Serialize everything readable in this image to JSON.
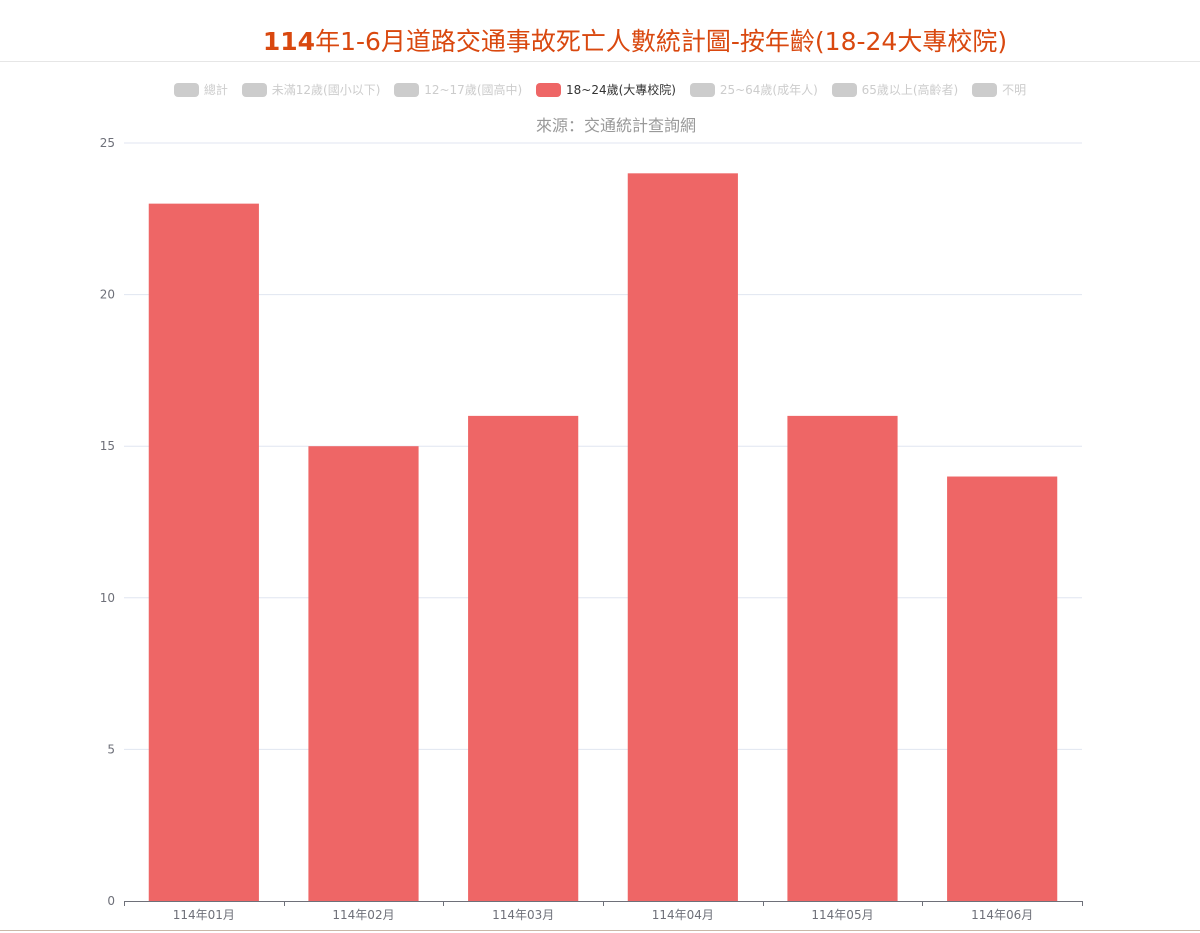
{
  "title": {
    "year_part": "114",
    "rest_part": "年1-6月道路交通事故死亡人數統計圖-按年齡(18-24大專校院)"
  },
  "source_text": "來源：交通統計查詢網",
  "legend": [
    {
      "label": "總計",
      "active": false
    },
    {
      "label": "未滿12歲(國小以下)",
      "active": false
    },
    {
      "label": "12~17歲(國高中)",
      "active": false
    },
    {
      "label": "18~24歲(大專校院)",
      "active": true
    },
    {
      "label": "25~64歲(成年人)",
      "active": false
    },
    {
      "label": "65歲以上(高齡者)",
      "active": false
    },
    {
      "label": "不明",
      "active": false
    }
  ],
  "colors": {
    "bar": "#ee6666",
    "title": "#d9480f",
    "inactive_legend": "#cccccc",
    "grid": "#e0e6f1",
    "axis": "#6e7079"
  },
  "chart_data": {
    "type": "bar",
    "title": "114年1-6月道路交通事故死亡人數統計圖-按年齡(18-24大專校院)",
    "subtitle": "來源：交通統計查詢網",
    "categories": [
      "114年01月",
      "114年02月",
      "114年03月",
      "114年04月",
      "114年05月",
      "114年06月"
    ],
    "series": [
      {
        "name": "18~24歲(大專校院)",
        "values": [
          23,
          15,
          16,
          24,
          16,
          14
        ]
      }
    ],
    "yticks": [
      0,
      5,
      10,
      15,
      20,
      25
    ],
    "ylim": [
      0,
      25
    ],
    "grid": true,
    "legend_position": "top"
  }
}
